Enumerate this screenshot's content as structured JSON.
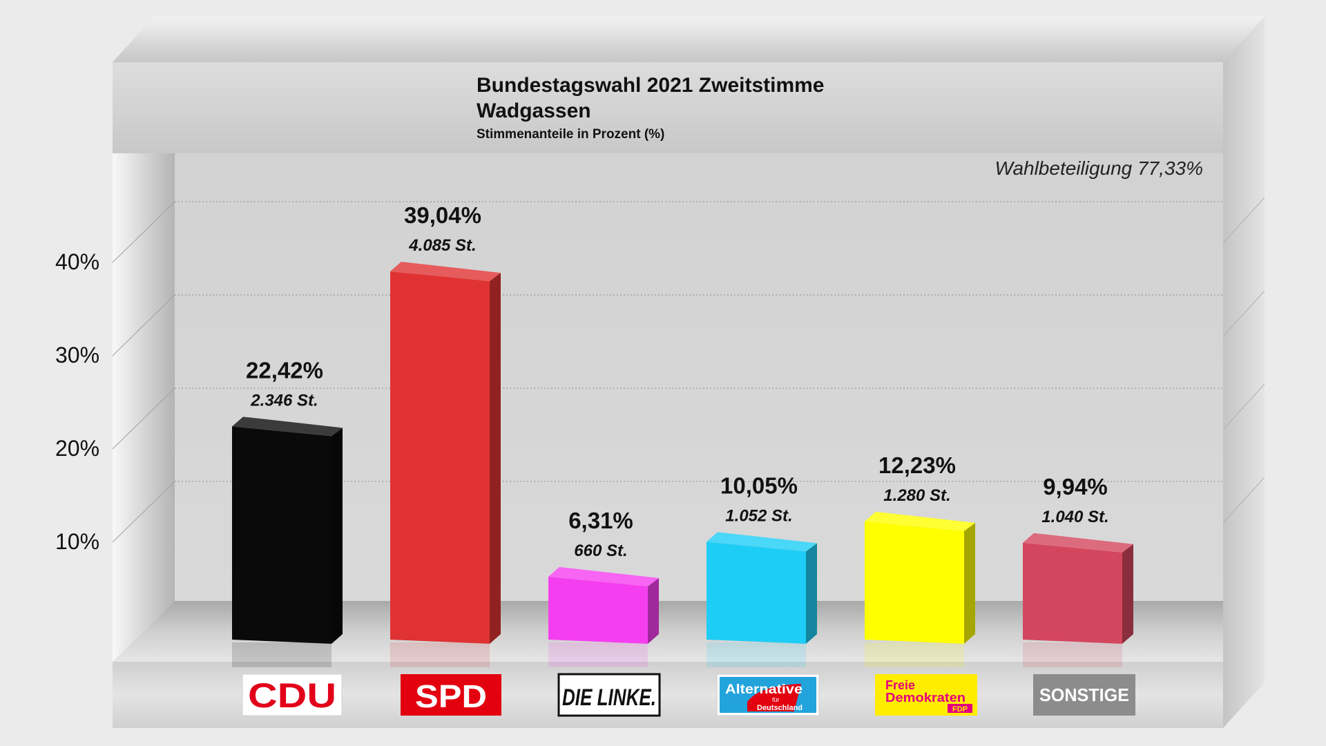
{
  "chart_data": {
    "type": "bar",
    "title": "Bundestagswahl 2021 Zweitstimme",
    "subtitle": "Wadgassen",
    "note": "Stimmenanteile in Prozent (%)",
    "annotation": "Wahlbeteiligung 77,33%",
    "categories": [
      "CDU",
      "SPD",
      "DIE LINKE.",
      "Alternative für Deutschland",
      "Freie Demokraten FDP",
      "SONSTIGE"
    ],
    "values": [
      22.42,
      39.04,
      6.31,
      10.05,
      12.23,
      9.94
    ],
    "value_labels": [
      "22,42%",
      "39,04%",
      "6,31%",
      "10,05%",
      "12,23%",
      "9,94%"
    ],
    "vote_labels": [
      "2.346 St.",
      "4.085 St.",
      "660 St.",
      "1.052 St.",
      "1.280 St.",
      "1.040 St."
    ],
    "colors": [
      "#0a0a0a",
      "#e03232",
      "#f53ef0",
      "#1ecdf5",
      "#ffff00",
      "#d4465e"
    ],
    "yticks": [
      10,
      20,
      30,
      40
    ],
    "ytick_labels": [
      "10%",
      "20%",
      "30%",
      "40%"
    ],
    "ylim": [
      0,
      40
    ],
    "grid": true,
    "legend": "logos below bars"
  },
  "logos": {
    "cdu": "CDU",
    "spd": "SPD",
    "linke": "DIE LINKE.",
    "afd_main": "Alternative",
    "afd_sub1": "für",
    "afd_sub2": "Deutschland",
    "fdp_line1": "Freie",
    "fdp_line2": "Demokraten",
    "fdp_badge": "FDP",
    "sonstige": "SONSTIGE"
  }
}
